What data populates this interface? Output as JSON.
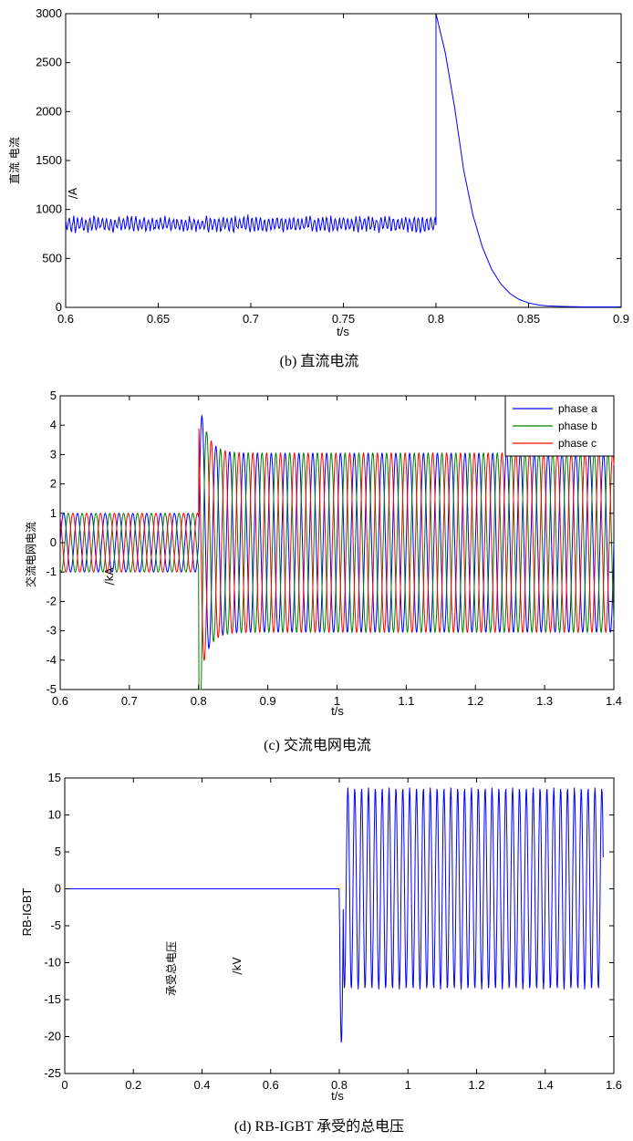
{
  "chart_data": [
    {
      "id": "b",
      "type": "line",
      "caption": "(b)  直流电流",
      "xlabel": "t/s",
      "ylabel": "直流 电流",
      "yunit": "/A",
      "xlim": [
        0.6,
        0.9
      ],
      "ylim": [
        0,
        3000
      ],
      "xticks": [
        0.6,
        0.65,
        0.7,
        0.75,
        0.8,
        0.85,
        0.9
      ],
      "yticks": [
        0,
        500,
        1000,
        1500,
        2000,
        2500,
        3000
      ],
      "series": [
        {
          "color": "#0000ff",
          "x": [
            0.6,
            0.8,
            0.8,
            0.805,
            0.81,
            0.815,
            0.82,
            0.825,
            0.83,
            0.835,
            0.84,
            0.845,
            0.85,
            0.855,
            0.86,
            0.87,
            0.88,
            0.9
          ],
          "y": [
            850,
            850,
            3000,
            2600,
            2050,
            1400,
            940,
            620,
            390,
            240,
            140,
            80,
            45,
            25,
            15,
            8,
            5,
            5
          ]
        }
      ],
      "notes": "Before 0.8 s the current fluctuates between about 750 and 950 A."
    },
    {
      "id": "c",
      "type": "line",
      "caption": "(c)  交流电网电流",
      "xlabel": "t/s",
      "ylabel": "交流电网电流",
      "yunit": "/kA",
      "xlim": [
        0.6,
        1.4
      ],
      "ylim": [
        -5,
        5
      ],
      "xticks": [
        0.6,
        0.7,
        0.8,
        0.9,
        1,
        1.1,
        1.2,
        1.3,
        1.4
      ],
      "yticks": [
        -5,
        -4,
        -3,
        -2,
        -1,
        0,
        1,
        2,
        3,
        4,
        5
      ],
      "legend": {
        "position": "top-right",
        "entries": [
          "phase a",
          "phase b",
          "phase c"
        ]
      },
      "series": [
        {
          "name": "phase a",
          "color": "#0000ff",
          "amplitude_before": 1.0,
          "amplitude_after": 3.05,
          "peak": 5.0,
          "fault_time": 0.8
        },
        {
          "name": "phase b",
          "color": "#008000",
          "amplitude_before": 1.0,
          "amplitude_after": 3.05,
          "trough": -4.8,
          "fault_time": 0.8
        },
        {
          "name": "phase c",
          "color": "#ff0000",
          "amplitude_before": 1.0,
          "amplitude_after": 3.05,
          "fault_time": 0.8
        }
      ]
    },
    {
      "id": "d",
      "type": "line",
      "caption": "(d) RB-IGBT 承受的总电压",
      "xlabel": "t/s",
      "ylabel_parts": [
        "RB-IGBT",
        "承受总电压",
        "/kV"
      ],
      "xlim": [
        0,
        1.6
      ],
      "ylim": [
        -25,
        15
      ],
      "xticks": [
        0,
        0.2,
        0.4,
        0.6,
        0.8,
        1,
        1.2,
        1.4,
        1.6
      ],
      "yticks": [
        -25,
        -20,
        -15,
        -10,
        -5,
        0,
        5,
        10,
        15
      ],
      "series": [
        {
          "color": "#0000ff",
          "value_before": 0,
          "fault_time": 0.8,
          "min_at_fault": -21,
          "oscillation_max": 13.7,
          "oscillation_min": -13.6,
          "end_time": 1.57
        }
      ]
    }
  ]
}
